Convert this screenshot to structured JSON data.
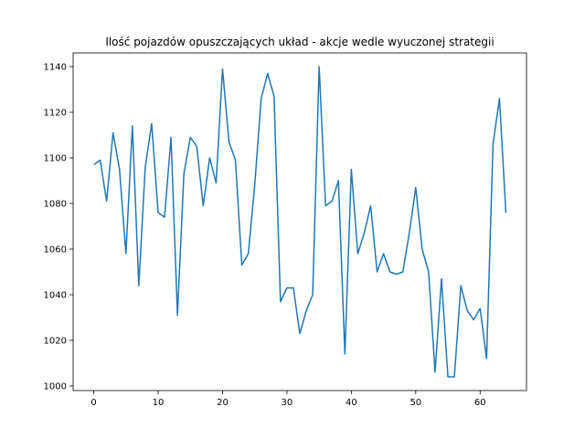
{
  "chart_data": {
    "type": "line",
    "title": "Ilość pojazdów opuszczających układ - akcje wedle wyuczonej strategii",
    "xlabel": "",
    "ylabel": "",
    "xlim": [
      -3.2,
      67.2
    ],
    "ylim": [
      998,
      1146
    ],
    "x_ticks": [
      0,
      10,
      20,
      30,
      40,
      50,
      60
    ],
    "y_ticks": [
      1000,
      1020,
      1040,
      1060,
      1080,
      1100,
      1120,
      1140
    ],
    "grid": false,
    "legend": "none",
    "series": [
      {
        "color": "#1f77b4",
        "x": [
          0,
          1,
          2,
          3,
          4,
          5,
          6,
          7,
          8,
          9,
          10,
          11,
          12,
          13,
          14,
          15,
          16,
          17,
          18,
          19,
          20,
          21,
          22,
          23,
          24,
          25,
          26,
          27,
          28,
          29,
          30,
          31,
          32,
          33,
          34,
          35,
          36,
          37,
          38,
          39,
          40,
          41,
          42,
          43,
          44,
          45,
          46,
          47,
          48,
          49,
          50,
          51,
          52,
          53,
          54,
          55,
          56,
          57,
          58,
          59,
          60,
          61,
          62,
          63,
          64
        ],
        "values": [
          1097,
          1099,
          1081,
          1111,
          1095,
          1058,
          1114,
          1044,
          1096,
          1115,
          1076,
          1074,
          1109,
          1031,
          1093,
          1109,
          1105,
          1079,
          1100,
          1089,
          1139,
          1107,
          1099,
          1053,
          1058,
          1088,
          1126,
          1137,
          1127,
          1037,
          1043,
          1043,
          1023,
          1033,
          1040,
          1140,
          1079,
          1081,
          1090,
          1014,
          1095,
          1058,
          1067,
          1079,
          1050,
          1058,
          1050,
          1049,
          1050,
          1067,
          1087,
          1060,
          1050,
          1006,
          1047,
          1004,
          1004,
          1044,
          1033,
          1029,
          1034,
          1012,
          1106,
          1126,
          1076
        ]
      }
    ]
  }
}
